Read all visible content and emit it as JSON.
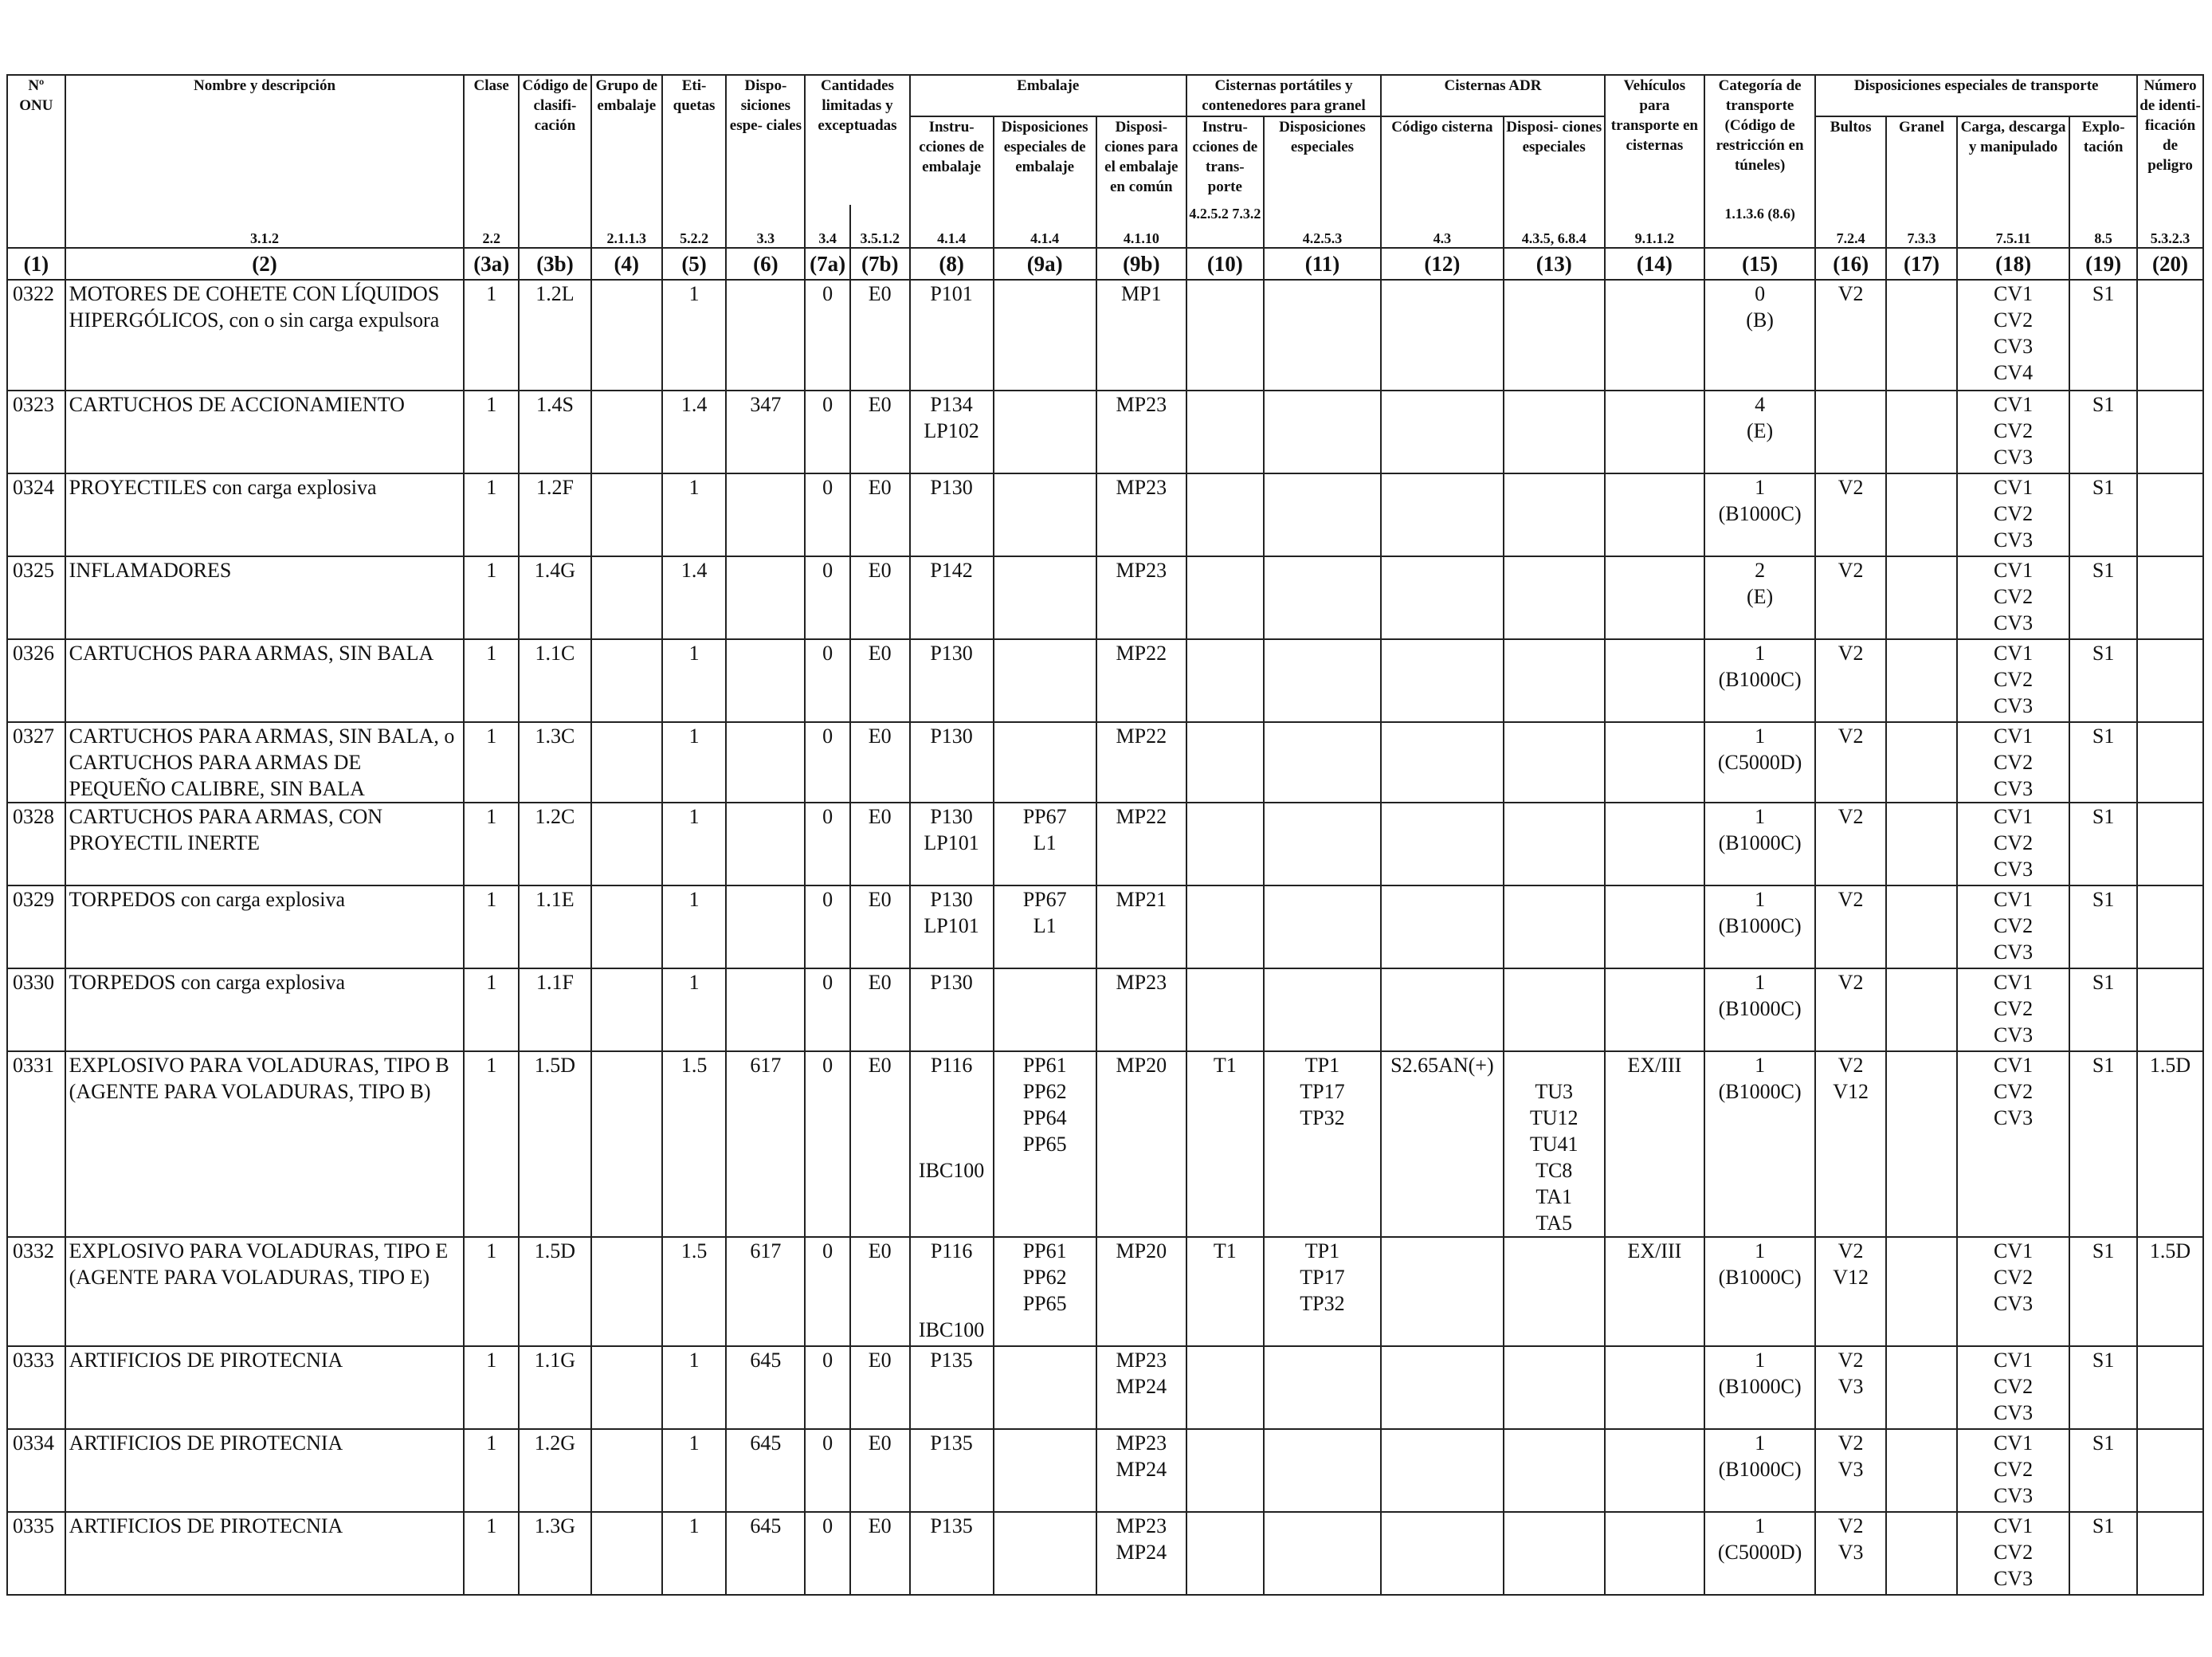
{
  "headers": {
    "un_number": "Nº ONU",
    "name": "Nombre y descripción",
    "class": "Clase",
    "class_code": "Código de clasifi- cación",
    "packing_group": "Grupo de embalaje",
    "labels": "Eti- quetas",
    "special_provisions": "Dispo- siciones espe- ciales",
    "limited_quantities": "Cantidades limitadas y exceptuadas",
    "packaging": "Embalaje",
    "pack_instructions": "Instru- cciones de embalaje",
    "pack_special": "Disposiciones especiales de embalaje",
    "mixed_packing": "Disposi- ciones para el embalaje en común",
    "portable_tanks": "Cisternas portátiles y contenedores para granel",
    "pt_instructions": "Instru- cciones de trans- porte",
    "pt_special": "Disposiciones especiales",
    "adr_tanks": "Cisternas ADR",
    "tank_code": "Código cisterna",
    "tank_special": "Disposi- ciones especiales",
    "vehicles": "Vehículos para transporte en cisternas",
    "transport_category": "Categoría de transporte (Código de restricción en túneles)",
    "special_transport": "Disposiciones especiales de transporte",
    "packages": "Bultos",
    "bulk": "Granel",
    "loading": "Carga, descarga y manipulado",
    "operation": "Explo- tación",
    "hazard_id": "Número de identi- ficación de peligro"
  },
  "refs": {
    "name": "3.1.2",
    "class": "2.2",
    "packing_group": "2.1.1.3",
    "labels": "5.2.2",
    "special_provisions": "3.3",
    "lq": "3.4",
    "eq": "3.5.1.2",
    "c8": "4.1.4",
    "c9a": "4.1.4",
    "c9b": "4.1.10",
    "c10": "4.2.5.2 7.3.2",
    "c11": "4.2.5.3",
    "c12": "4.3",
    "c13": "4.3.5, 6.8.4",
    "c14": "9.1.1.2",
    "c15": "1.1.3.6 (8.6)",
    "c16": "7.2.4",
    "c17": "7.3.3",
    "c18": "7.5.11",
    "c19": "8.5",
    "c20": "5.3.2.3"
  },
  "column_numbers": [
    "(1)",
    "(2)",
    "(3a)",
    "(3b)",
    "(4)",
    "(5)",
    "(6)",
    "(7a)",
    "(7b)",
    "(8)",
    "(9a)",
    "(9b)",
    "(10)",
    "(11)",
    "(12)",
    "(13)",
    "(14)",
    "(15)",
    "(16)",
    "(17)",
    "(18)",
    "(19)",
    "(20)"
  ],
  "rows": [
    {
      "un": "0322",
      "name": "MOTORES DE COHETE CON LÍQUIDOS HIPERGÓLICOS, con o sin carga expulsora",
      "cls": "1",
      "code": "1.2L",
      "pg": "",
      "lbl": "1",
      "sp": "",
      "lq": "0",
      "eq": "E0",
      "pi": [
        "P101"
      ],
      "ps": [],
      "mp": [
        "MP1"
      ],
      "t10": "",
      "t11": [],
      "t12": "",
      "t13": [],
      "v14": "",
      "cat": [
        "0",
        "(B)"
      ],
      "pk": [
        "V2"
      ],
      "bk": "",
      "ld": [
        "CV1",
        "CV2",
        "CV3",
        "CV4"
      ],
      "op": "S1",
      "hz": ""
    },
    {
      "un": "0323",
      "name": "CARTUCHOS DE ACCIONAMIENTO",
      "cls": "1",
      "code": "1.4S",
      "pg": "",
      "lbl": "1.4",
      "sp": "347",
      "lq": "0",
      "eq": "E0",
      "pi": [
        "P134",
        "LP102"
      ],
      "ps": [],
      "mp": [
        "MP23"
      ],
      "t10": "",
      "t11": [],
      "t12": "",
      "t13": [],
      "v14": "",
      "cat": [
        "4",
        "(E)"
      ],
      "pk": [],
      "bk": "",
      "ld": [
        "CV1",
        "CV2",
        "CV3"
      ],
      "op": "S1",
      "hz": ""
    },
    {
      "un": "0324",
      "name": "PROYECTILES con carga explosiva",
      "cls": "1",
      "code": "1.2F",
      "pg": "",
      "lbl": "1",
      "sp": "",
      "lq": "0",
      "eq": "E0",
      "pi": [
        "P130"
      ],
      "ps": [],
      "mp": [
        "MP23"
      ],
      "t10": "",
      "t11": [],
      "t12": "",
      "t13": [],
      "v14": "",
      "cat": [
        "1",
        "(B1000C)"
      ],
      "pk": [
        "V2"
      ],
      "bk": "",
      "ld": [
        "CV1",
        "CV2",
        "CV3"
      ],
      "op": "S1",
      "hz": ""
    },
    {
      "un": "0325",
      "name": "INFLAMADORES",
      "cls": "1",
      "code": "1.4G",
      "pg": "",
      "lbl": "1.4",
      "sp": "",
      "lq": "0",
      "eq": "E0",
      "pi": [
        "P142"
      ],
      "ps": [],
      "mp": [
        "MP23"
      ],
      "t10": "",
      "t11": [],
      "t12": "",
      "t13": [],
      "v14": "",
      "cat": [
        "2",
        "(E)"
      ],
      "pk": [
        "V2"
      ],
      "bk": "",
      "ld": [
        "CV1",
        "CV2",
        "CV3"
      ],
      "op": "S1",
      "hz": ""
    },
    {
      "un": "0326",
      "name": "CARTUCHOS PARA ARMAS, SIN BALA",
      "cls": "1",
      "code": "1.1C",
      "pg": "",
      "lbl": "1",
      "sp": "",
      "lq": "0",
      "eq": "E0",
      "pi": [
        "P130"
      ],
      "ps": [],
      "mp": [
        "MP22"
      ],
      "t10": "",
      "t11": [],
      "t12": "",
      "t13": [],
      "v14": "",
      "cat": [
        "1",
        "(B1000C)"
      ],
      "pk": [
        "V2"
      ],
      "bk": "",
      "ld": [
        "CV1",
        "CV2",
        "CV3"
      ],
      "op": "S1",
      "hz": ""
    },
    {
      "un": "0327",
      "name": "CARTUCHOS PARA ARMAS, SIN BALA, o CARTUCHOS PARA ARMAS DE PEQUEÑO CALIBRE, SIN BALA",
      "cls": "1",
      "code": "1.3C",
      "pg": "",
      "lbl": "1",
      "sp": "",
      "lq": "0",
      "eq": "E0",
      "pi": [
        "P130"
      ],
      "ps": [],
      "mp": [
        "MP22"
      ],
      "t10": "",
      "t11": [],
      "t12": "",
      "t13": [],
      "v14": "",
      "cat": [
        "1",
        "(C5000D)"
      ],
      "pk": [
        "V2"
      ],
      "bk": "",
      "ld": [
        "CV1",
        "CV2",
        "CV3"
      ],
      "op": "S1",
      "hz": ""
    },
    {
      "un": "0328",
      "name": "CARTUCHOS PARA ARMAS, CON PROYECTIL INERTE",
      "cls": "1",
      "code": "1.2C",
      "pg": "",
      "lbl": "1",
      "sp": "",
      "lq": "0",
      "eq": "E0",
      "pi": [
        "P130",
        "LP101"
      ],
      "ps": [
        "PP67",
        "L1"
      ],
      "mp": [
        "MP22"
      ],
      "t10": "",
      "t11": [],
      "t12": "",
      "t13": [],
      "v14": "",
      "cat": [
        "1",
        "(B1000C)"
      ],
      "pk": [
        "V2"
      ],
      "bk": "",
      "ld": [
        "CV1",
        "CV2",
        "CV3"
      ],
      "op": "S1",
      "hz": ""
    },
    {
      "un": "0329",
      "name": "TORPEDOS con carga explosiva",
      "cls": "1",
      "code": "1.1E",
      "pg": "",
      "lbl": "1",
      "sp": "",
      "lq": "0",
      "eq": "E0",
      "pi": [
        "P130",
        "LP101"
      ],
      "ps": [
        "PP67",
        "L1"
      ],
      "mp": [
        "MP21"
      ],
      "t10": "",
      "t11": [],
      "t12": "",
      "t13": [],
      "v14": "",
      "cat": [
        "1",
        "(B1000C)"
      ],
      "pk": [
        "V2"
      ],
      "bk": "",
      "ld": [
        "CV1",
        "CV2",
        "CV3"
      ],
      "op": "S1",
      "hz": ""
    },
    {
      "un": "0330",
      "name": "TORPEDOS con carga explosiva",
      "cls": "1",
      "code": "1.1F",
      "pg": "",
      "lbl": "1",
      "sp": "",
      "lq": "0",
      "eq": "E0",
      "pi": [
        "P130"
      ],
      "ps": [],
      "mp": [
        "MP23"
      ],
      "t10": "",
      "t11": [],
      "t12": "",
      "t13": [],
      "v14": "",
      "cat": [
        "1",
        "(B1000C)"
      ],
      "pk": [
        "V2"
      ],
      "bk": "",
      "ld": [
        "CV1",
        "CV2",
        "CV3"
      ],
      "op": "S1",
      "hz": ""
    },
    {
      "un": "0331",
      "name": "EXPLOSIVO PARA VOLADURAS, TIPO B (AGENTE PARA VOLADURAS, TIPO B)",
      "cls": "1",
      "code": "1.5D",
      "pg": "",
      "lbl": "1.5",
      "sp": "617",
      "lq": "0",
      "eq": "E0",
      "pi": [
        "P116",
        "",
        "",
        "",
        "IBC100"
      ],
      "ps": [
        "PP61",
        "PP62",
        "PP64",
        "PP65"
      ],
      "mp": [
        "MP20"
      ],
      "t10": "T1",
      "t11": [
        "TP1",
        "TP17",
        "TP32"
      ],
      "t12": "S2.65AN(+)",
      "t13": [
        "",
        "TU3",
        "TU12",
        "TU41",
        "TC8",
        "TA1",
        "TA5"
      ],
      "v14": "EX/III",
      "cat": [
        "1",
        "(B1000C)"
      ],
      "pk": [
        "V2",
        "V12"
      ],
      "bk": "",
      "ld": [
        "CV1",
        "CV2",
        "CV3"
      ],
      "op": "S1",
      "hz": "1.5D"
    },
    {
      "un": "0332",
      "name": "EXPLOSIVO PARA VOLADURAS, TIPO E (AGENTE PARA VOLADURAS, TIPO E)",
      "cls": "1",
      "code": "1.5D",
      "pg": "",
      "lbl": "1.5",
      "sp": "617",
      "lq": "0",
      "eq": "E0",
      "pi": [
        "P116",
        "",
        "",
        "IBC100"
      ],
      "ps": [
        "PP61",
        "PP62",
        "PP65"
      ],
      "mp": [
        "MP20"
      ],
      "t10": "T1",
      "t11": [
        "TP1",
        "TP17",
        "TP32"
      ],
      "t12": "",
      "t13": [],
      "v14": "EX/III",
      "cat": [
        "1",
        "(B1000C)"
      ],
      "pk": [
        "V2",
        "V12"
      ],
      "bk": "",
      "ld": [
        "CV1",
        "CV2",
        "CV3"
      ],
      "op": "S1",
      "hz": "1.5D"
    },
    {
      "un": "0333",
      "name": "ARTIFICIOS DE PIROTECNIA",
      "cls": "1",
      "code": "1.1G",
      "pg": "",
      "lbl": "1",
      "sp": "645",
      "lq": "0",
      "eq": "E0",
      "pi": [
        "P135"
      ],
      "ps": [],
      "mp": [
        "MP23",
        "MP24"
      ],
      "t10": "",
      "t11": [],
      "t12": "",
      "t13": [],
      "v14": "",
      "cat": [
        "1",
        "(B1000C)"
      ],
      "pk": [
        "V2",
        "V3"
      ],
      "bk": "",
      "ld": [
        "CV1",
        "CV2",
        "CV3"
      ],
      "op": "S1",
      "hz": ""
    },
    {
      "un": "0334",
      "name": "ARTIFICIOS DE PIROTECNIA",
      "cls": "1",
      "code": "1.2G",
      "pg": "",
      "lbl": "1",
      "sp": "645",
      "lq": "0",
      "eq": "E0",
      "pi": [
        "P135"
      ],
      "ps": [],
      "mp": [
        "MP23",
        "MP24"
      ],
      "t10": "",
      "t11": [],
      "t12": "",
      "t13": [],
      "v14": "",
      "cat": [
        "1",
        "(B1000C)"
      ],
      "pk": [
        "V2",
        "V3"
      ],
      "bk": "",
      "ld": [
        "CV1",
        "CV2",
        "CV3"
      ],
      "op": "S1",
      "hz": ""
    },
    {
      "un": "0335",
      "name": "ARTIFICIOS DE PIROTECNIA",
      "cls": "1",
      "code": "1.3G",
      "pg": "",
      "lbl": "1",
      "sp": "645",
      "lq": "0",
      "eq": "E0",
      "pi": [
        "P135"
      ],
      "ps": [],
      "mp": [
        "MP23",
        "MP24"
      ],
      "t10": "",
      "t11": [],
      "t12": "",
      "t13": [],
      "v14": "",
      "cat": [
        "1",
        "(C5000D)"
      ],
      "pk": [
        "V2",
        "V3"
      ],
      "bk": "",
      "ld": [
        "CV1",
        "CV2",
        "CV3"
      ],
      "op": "S1",
      "hz": ""
    }
  ]
}
